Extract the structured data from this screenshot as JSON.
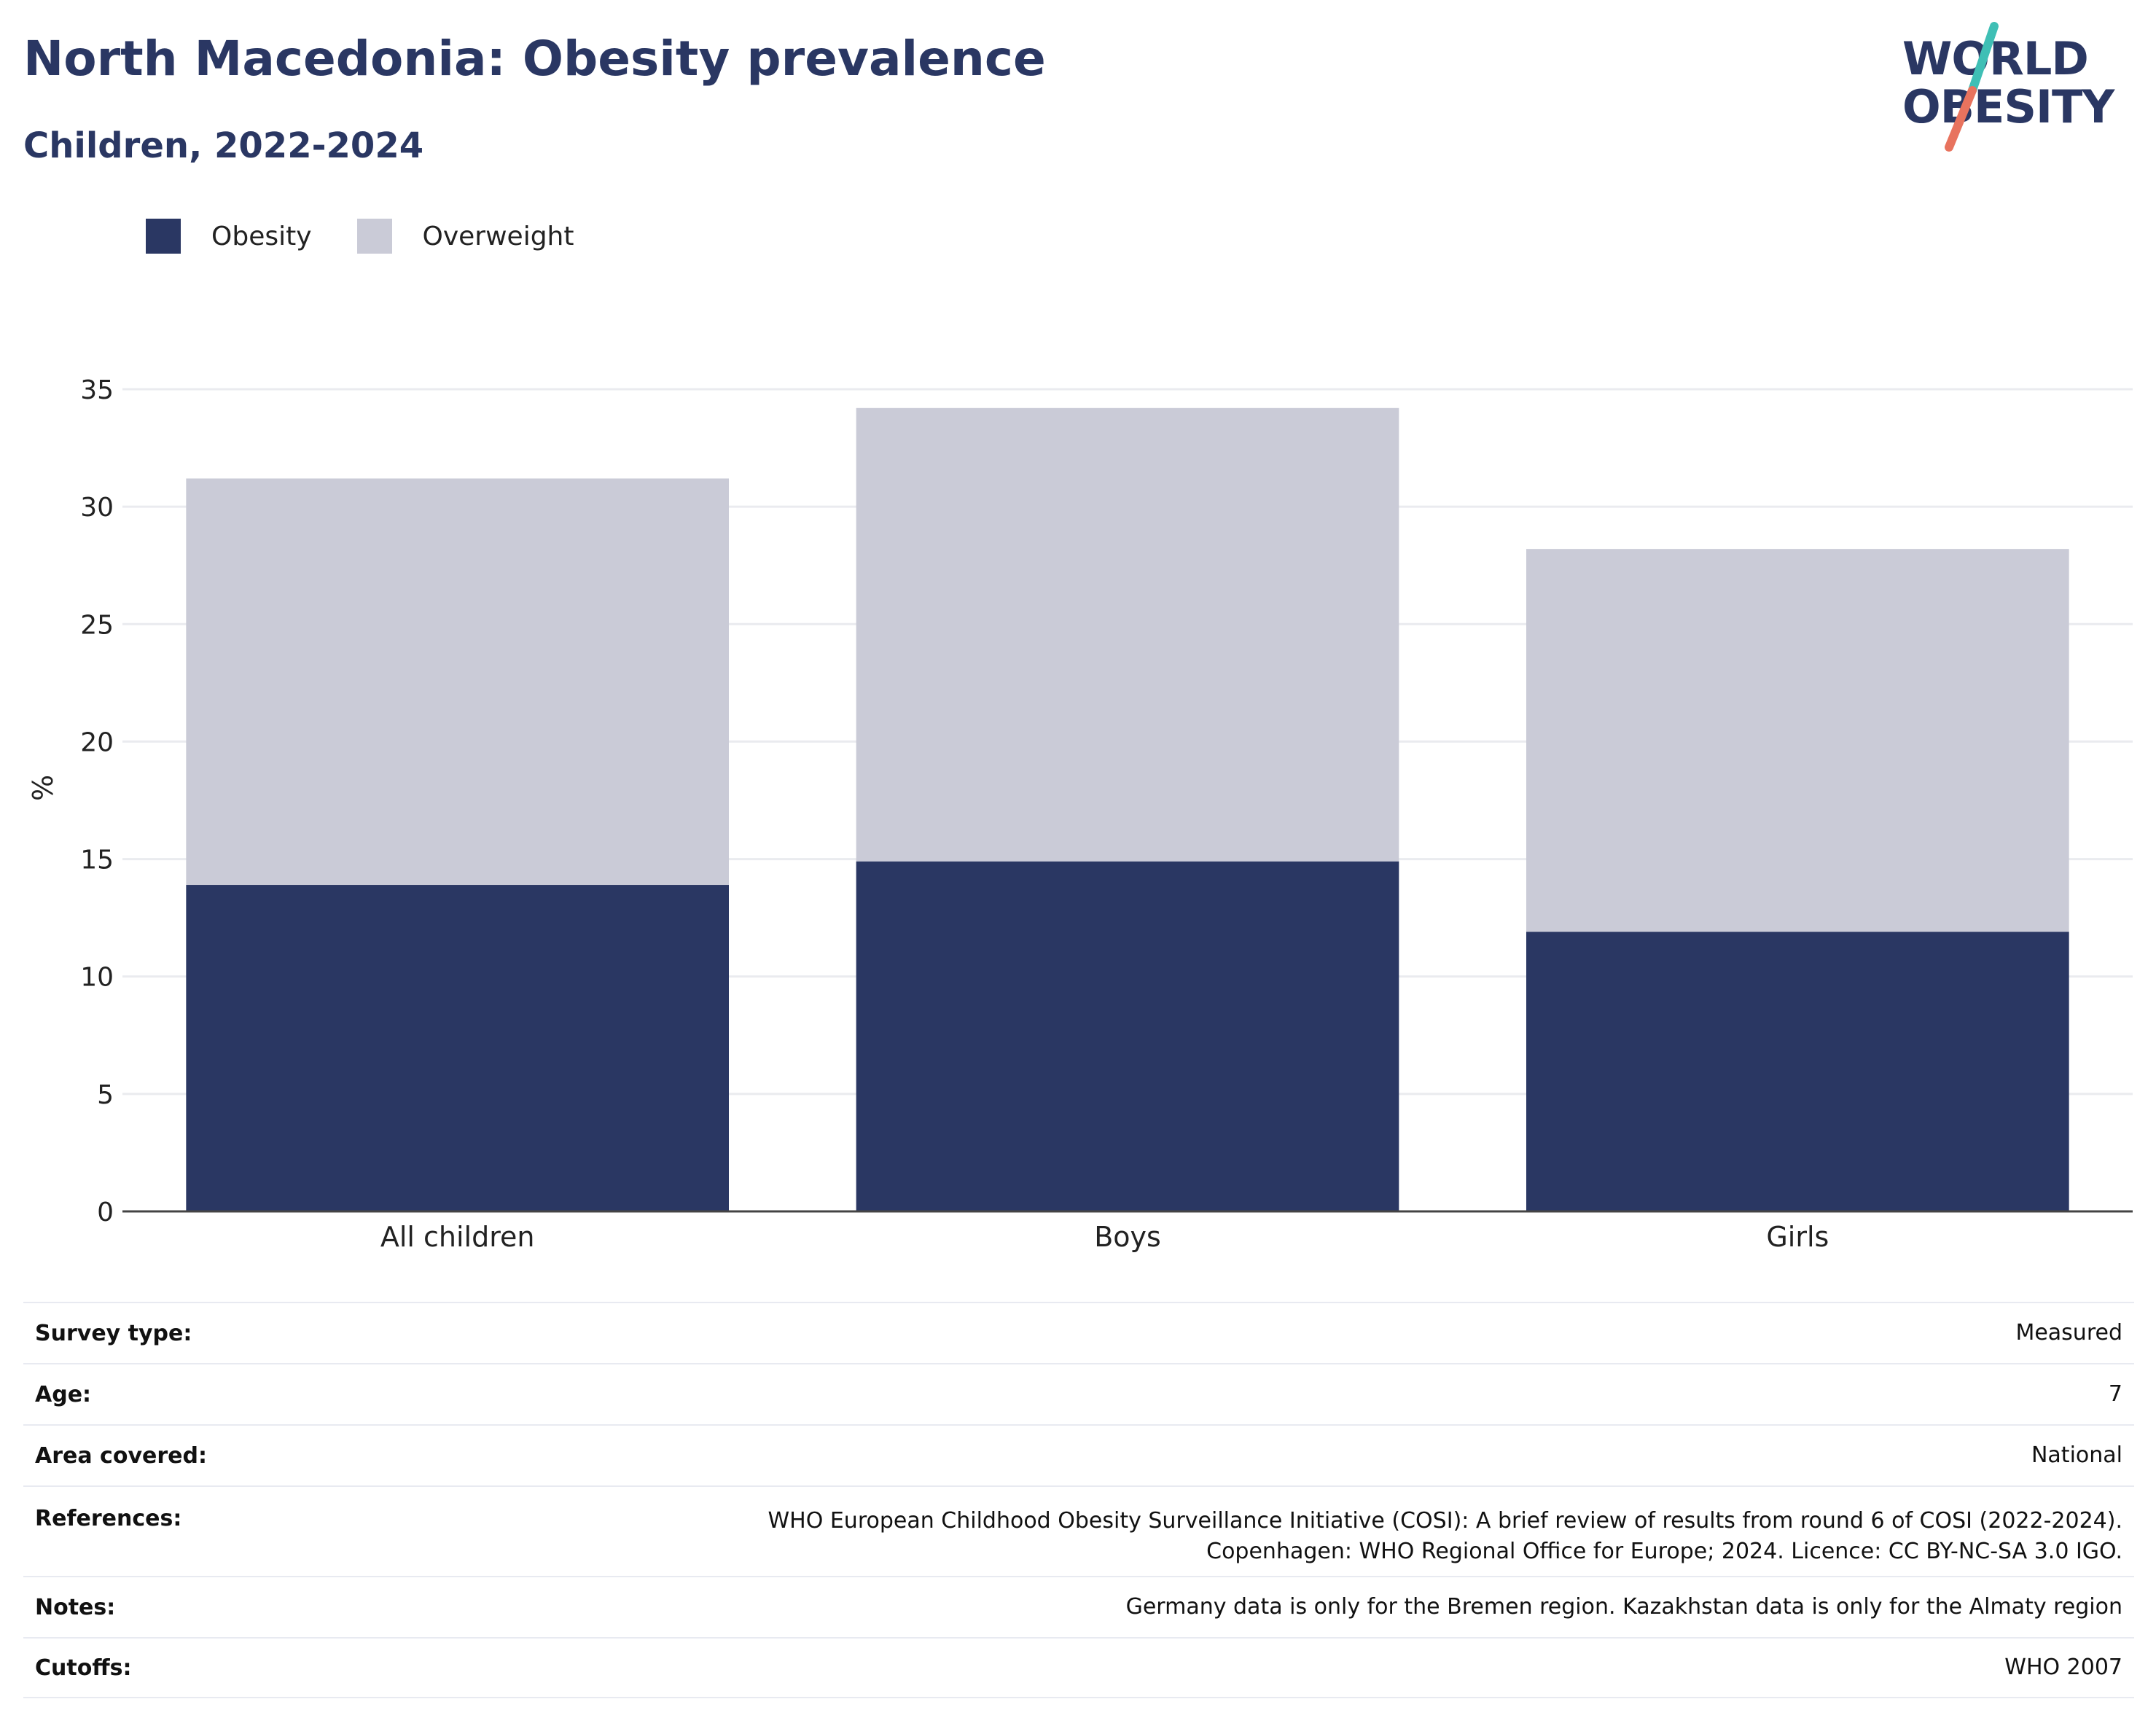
{
  "header": {
    "title": "North Macedonia: Obesity prevalence",
    "subtitle": "Children, 2022-2024"
  },
  "logo": {
    "line1": "WORLD",
    "line2": "OBESITY",
    "slash_colors": [
      "#3fbfb5",
      "#e8735e"
    ]
  },
  "legend": {
    "items": [
      {
        "label": "Obesity",
        "color": "#2a3763"
      },
      {
        "label": "Overweight",
        "color": "#cacbd7"
      }
    ]
  },
  "chart_data": {
    "type": "bar",
    "stacked": true,
    "categories": [
      "All children",
      "Boys",
      "Girls"
    ],
    "series": [
      {
        "name": "Obesity",
        "color": "#2a3763",
        "values": [
          13.9,
          14.9,
          11.9
        ]
      },
      {
        "name": "Overweight",
        "color": "#cacbd7",
        "values": [
          17.3,
          19.3,
          16.3
        ]
      }
    ],
    "ylabel": "%",
    "xlabel": "",
    "ylim": [
      0,
      35
    ],
    "yticks": [
      0,
      5,
      10,
      15,
      20,
      25,
      30,
      35
    ],
    "grid": true,
    "legend_position": "top-left"
  },
  "info": {
    "rows": [
      {
        "key": "Survey type:",
        "value": "Measured"
      },
      {
        "key": "Age:",
        "value": "7"
      },
      {
        "key": "Area covered:",
        "value": "National"
      },
      {
        "key": "References:",
        "value": "WHO European Childhood Obesity Surveillance Initiative (COSI): A brief review of results from round 6 of COSI (2022-2024). Copenhagen: WHO Regional Office for Europe; 2024. Licence: CC BY-NC-SA 3.0 IGO."
      },
      {
        "key": "Notes:",
        "value": "Germany data is only for the Bremen region. Kazakhstan data is only for the Almaty region"
      },
      {
        "key": "Cutoffs:",
        "value": "WHO 2007"
      }
    ]
  }
}
